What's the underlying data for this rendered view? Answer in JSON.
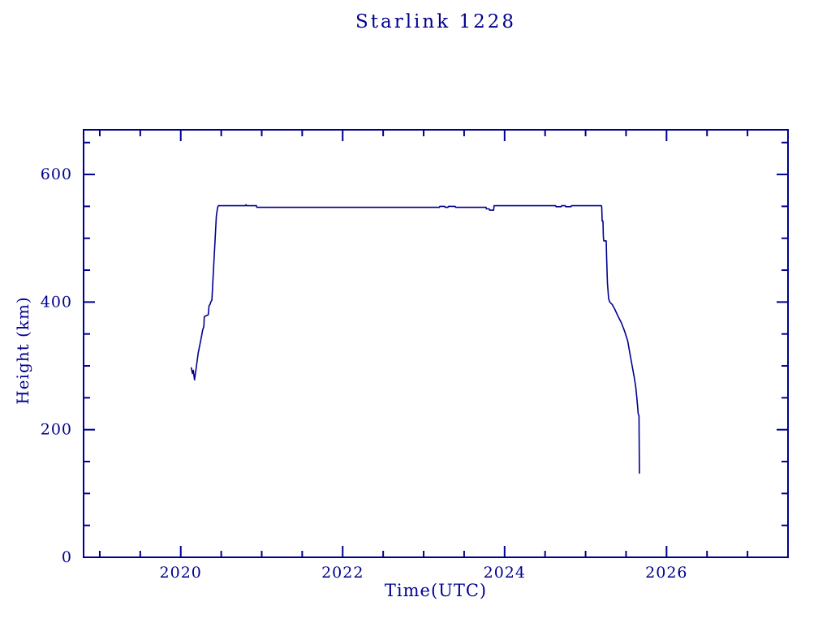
{
  "page": {
    "background": "#ffffff",
    "accent": "#000090"
  },
  "chart_data": {
    "type": "line",
    "title": "Starlink 1228",
    "xlabel": "Time(UTC)",
    "ylabel": "Height (km)",
    "xlim": [
      2018.8,
      2027.5
    ],
    "ylim": [
      0,
      670
    ],
    "grid": false,
    "line_color": "#000090",
    "x_major_ticks": {
      "values": [
        2020,
        2022,
        2024,
        2026
      ],
      "labels": [
        "2020",
        "2022",
        "2024",
        "2026"
      ]
    },
    "x_minor_tick_step": 0.5,
    "x_minor_tick_start": 2019.0,
    "x_minor_tick_end": 2027.0,
    "y_major_ticks": {
      "values": [
        0,
        200,
        400,
        600
      ],
      "labels": [
        "0",
        "200",
        "400",
        "600"
      ]
    },
    "y_minor_tick_step": 50,
    "series": [
      {
        "name": "Starlink 1228 height",
        "points": [
          [
            2020.13,
            297
          ],
          [
            2020.145,
            288
          ],
          [
            2020.155,
            293
          ],
          [
            2020.17,
            278
          ],
          [
            2020.19,
            296
          ],
          [
            2020.215,
            320
          ],
          [
            2020.25,
            342
          ],
          [
            2020.27,
            356
          ],
          [
            2020.285,
            362
          ],
          [
            2020.29,
            377
          ],
          [
            2020.3,
            378
          ],
          [
            2020.34,
            380
          ],
          [
            2020.35,
            394
          ],
          [
            2020.365,
            397
          ],
          [
            2020.37,
            400
          ],
          [
            2020.385,
            403
          ],
          [
            2020.44,
            535
          ],
          [
            2020.455,
            548
          ],
          [
            2020.465,
            551
          ],
          [
            2020.8,
            551
          ],
          [
            2020.805,
            552.5
          ],
          [
            2020.815,
            551
          ],
          [
            2020.935,
            551
          ],
          [
            2020.94,
            548.5
          ],
          [
            2023.195,
            548.5
          ],
          [
            2023.2,
            550
          ],
          [
            2023.26,
            550
          ],
          [
            2023.265,
            548.5
          ],
          [
            2023.3,
            548.5
          ],
          [
            2023.305,
            550
          ],
          [
            2023.39,
            550
          ],
          [
            2023.395,
            548.5
          ],
          [
            2023.77,
            548.5
          ],
          [
            2023.775,
            546
          ],
          [
            2023.81,
            546
          ],
          [
            2023.815,
            544
          ],
          [
            2023.865,
            544
          ],
          [
            2023.87,
            551
          ],
          [
            2024.63,
            551
          ],
          [
            2024.635,
            549.5
          ],
          [
            2024.7,
            549.5
          ],
          [
            2024.705,
            551
          ],
          [
            2024.75,
            551
          ],
          [
            2024.755,
            549.5
          ],
          [
            2024.82,
            549.5
          ],
          [
            2024.825,
            551
          ],
          [
            2025.195,
            551
          ],
          [
            2025.2,
            549
          ],
          [
            2025.205,
            527
          ],
          [
            2025.215,
            527
          ],
          [
            2025.22,
            502
          ],
          [
            2025.225,
            496
          ],
          [
            2025.255,
            496
          ],
          [
            2025.26,
            470
          ],
          [
            2025.27,
            430
          ],
          [
            2025.285,
            405
          ],
          [
            2025.3,
            400
          ],
          [
            2025.33,
            396
          ],
          [
            2025.36,
            389
          ],
          [
            2025.4,
            378
          ],
          [
            2025.44,
            368
          ],
          [
            2025.48,
            355
          ],
          [
            2025.52,
            339
          ],
          [
            2025.55,
            318
          ],
          [
            2025.58,
            297
          ],
          [
            2025.6,
            283
          ],
          [
            2025.62,
            267
          ],
          [
            2025.635,
            248
          ],
          [
            2025.645,
            233
          ],
          [
            2025.65,
            225
          ],
          [
            2025.66,
            222
          ],
          [
            2025.665,
            132
          ]
        ]
      }
    ]
  }
}
